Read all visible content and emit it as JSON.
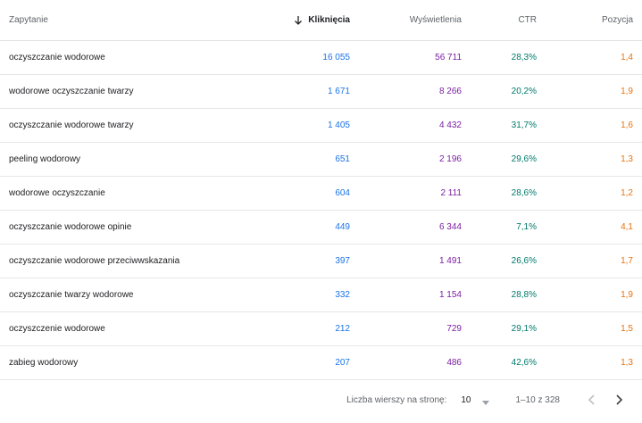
{
  "header": {
    "query": "Zapytanie",
    "clicks": "Kliknięcia",
    "impressions": "Wyświetlenia",
    "ctr": "CTR",
    "position": "Pozycja"
  },
  "rows": [
    {
      "query": "oczyszczanie wodorowe",
      "clicks": "16 055",
      "impressions": "56 711",
      "ctr": "28,3%",
      "position": "1,4"
    },
    {
      "query": "wodorowe oczyszczanie twarzy",
      "clicks": "1 671",
      "impressions": "8 266",
      "ctr": "20,2%",
      "position": "1,9"
    },
    {
      "query": "oczyszczanie wodorowe twarzy",
      "clicks": "1 405",
      "impressions": "4 432",
      "ctr": "31,7%",
      "position": "1,6"
    },
    {
      "query": "peeling wodorowy",
      "clicks": "651",
      "impressions": "2 196",
      "ctr": "29,6%",
      "position": "1,3"
    },
    {
      "query": "wodorowe oczyszczanie",
      "clicks": "604",
      "impressions": "2 111",
      "ctr": "28,6%",
      "position": "1,2"
    },
    {
      "query": "oczyszczanie wodorowe opinie",
      "clicks": "449",
      "impressions": "6 344",
      "ctr": "7,1%",
      "position": "4,1"
    },
    {
      "query": "oczyszczanie wodorowe przeciwwskazania",
      "clicks": "397",
      "impressions": "1 491",
      "ctr": "26,6%",
      "position": "1,7"
    },
    {
      "query": "oczyszczanie twarzy wodorowe",
      "clicks": "332",
      "impressions": "1 154",
      "ctr": "28,8%",
      "position": "1,9"
    },
    {
      "query": "oczyszczenie wodorowe",
      "clicks": "212",
      "impressions": "729",
      "ctr": "29,1%",
      "position": "1,5"
    },
    {
      "query": "zabieg wodorowy",
      "clicks": "207",
      "impressions": "486",
      "ctr": "42,6%",
      "position": "1,3"
    }
  ],
  "footer": {
    "rows_per_page_label": "Liczba wierszy na stronę:",
    "rows_per_page_value": "10",
    "range": "1–10 z 328"
  },
  "icons": {
    "sort": "arrow-down-icon",
    "dropdown": "caret-down-icon",
    "prev": "chevron-left-icon",
    "next": "chevron-right-icon"
  },
  "colors": {
    "clicks": "#1a73e8",
    "impressions": "#7b1fa2",
    "ctr": "#00796b",
    "position": "#e8710a"
  }
}
